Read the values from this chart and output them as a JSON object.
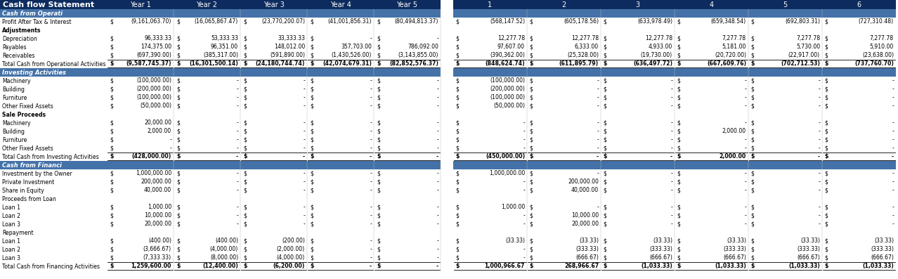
{
  "title": "Cash flow Statement",
  "header_bg": "#0d2b5e",
  "section_bg": "#4472a8",
  "header_text": "#ffffff",
  "body_text": "#000000",
  "col_headers_left": [
    "Year 1",
    "Year 2",
    "Year 3",
    "Year 4",
    "Year 5"
  ],
  "col_headers_right": [
    "1",
    "2",
    "3",
    "4",
    "5",
    "6"
  ],
  "rows": [
    {
      "label": "Cash from Operati",
      "type": "section"
    },
    {
      "label": "Profit After Tax & Interest",
      "type": "data",
      "left": [
        "(9,161,063.70)",
        "(16,065,867.47)",
        "(23,770,200.07)",
        "(41,001,856.31)",
        "(80,494,813.37)"
      ],
      "right": [
        "(568,147.52)",
        "(605,178.56)",
        "(633,978.49)",
        "(659,348.54)",
        "(692,803.31)",
        "(727,310.48)"
      ]
    },
    {
      "label": "Adjustments",
      "type": "bold_underline"
    },
    {
      "label": "Depreciation",
      "type": "data",
      "left": [
        "96,333.33",
        "53,333.33",
        "33,333.33",
        "-",
        "-"
      ],
      "right": [
        "12,277.78",
        "12,277.78",
        "12,277.78",
        "7,277.78",
        "7,277.78",
        "7,277.78"
      ]
    },
    {
      "label": "Payables",
      "type": "data",
      "left": [
        "174,375.00",
        "96,351.00",
        "148,012.00",
        "357,703.00",
        "786,092.00"
      ],
      "right": [
        "97,607.00",
        "6,333.00",
        "4,933.00",
        "5,181.00",
        "5,730.00",
        "5,910.00"
      ]
    },
    {
      "label": "Receivables",
      "type": "data",
      "left": [
        "(697,390.00)",
        "(385,317.00)",
        "(591,890.00)",
        "(1,430,526.00)",
        "(3,143,855.00)"
      ],
      "right": [
        "(390,362.00)",
        "(25,328.00)",
        "(19,730.00)",
        "(20,720.00)",
        "(22,917.00)",
        "(23,638.00)"
      ]
    },
    {
      "label": "Total Cash from Operational Activities",
      "type": "total",
      "left": [
        "(9,587,745.37)",
        "(16,301,500.14)",
        "(24,180,744.74)",
        "(42,074,679.31)",
        "(82,852,576.37)"
      ],
      "right": [
        "(848,624.74)",
        "(611,895.79)",
        "(636,497.72)",
        "(667,609.76)",
        "(702,712.53)",
        "(737,760.70)"
      ]
    },
    {
      "label": "Investing Activities",
      "type": "section"
    },
    {
      "label": "Machinery",
      "type": "data",
      "left": [
        "(100,000.00)",
        "-",
        "-",
        "-",
        "-"
      ],
      "right": [
        "(100,000.00)",
        "-",
        "-",
        "-",
        "-",
        "-"
      ]
    },
    {
      "label": "Building",
      "type": "data",
      "left": [
        "(200,000.00)",
        "-",
        "-",
        "-",
        "-"
      ],
      "right": [
        "(200,000.00)",
        "-",
        "-",
        "-",
        "-",
        "-"
      ]
    },
    {
      "label": "Furniture",
      "type": "data",
      "left": [
        "(100,000.00)",
        "-",
        "-",
        "-",
        "-"
      ],
      "right": [
        "(100,000.00)",
        "-",
        "-",
        "-",
        "-",
        "-"
      ]
    },
    {
      "label": "Other Fixed Assets",
      "type": "data",
      "left": [
        "(50,000.00)",
        "-",
        "-",
        "-",
        "-"
      ],
      "right": [
        "(50,000.00)",
        "-",
        "-",
        "-",
        "-",
        "-"
      ]
    },
    {
      "label": "Sale Proceeds",
      "type": "bold_underline"
    },
    {
      "label": "Machinery",
      "type": "data",
      "left": [
        "20,000.00",
        "-",
        "-",
        "-",
        "-"
      ],
      "right": [
        "-",
        "-",
        "-",
        "-",
        "-",
        "-"
      ]
    },
    {
      "label": "Building",
      "type": "data",
      "left": [
        "2,000.00",
        "-",
        "-",
        "-",
        "-"
      ],
      "right": [
        "-",
        "-",
        "-",
        "2,000.00",
        "-",
        "-"
      ]
    },
    {
      "label": "Furniture",
      "type": "data",
      "left": [
        "-",
        "-",
        "-",
        "-",
        "-"
      ],
      "right": [
        "-",
        "-",
        "-",
        "-",
        "-",
        "-"
      ]
    },
    {
      "label": "Other Fixed Assets",
      "type": "data",
      "left": [
        "-",
        "-",
        "-",
        "-",
        "-"
      ],
      "right": [
        "-",
        "-",
        "-",
        "-",
        "-",
        "-"
      ]
    },
    {
      "label": "Total Cash from Investing Activities",
      "type": "total",
      "left": [
        "(428,000.00)",
        "-",
        "-",
        "-",
        "-"
      ],
      "right": [
        "(450,000.00)",
        "-",
        "-",
        "2,000.00",
        "-",
        "-"
      ]
    },
    {
      "label": "Cash from Financi",
      "type": "section"
    },
    {
      "label": "Investment by the Owner",
      "type": "data",
      "left": [
        "1,000,000.00",
        "-",
        "-",
        "-",
        "-"
      ],
      "right": [
        "1,000,000.00",
        "-",
        "-",
        "-",
        "-",
        "-"
      ]
    },
    {
      "label": "Private Investment",
      "type": "data",
      "left": [
        "200,000.00",
        "-",
        "-",
        "-",
        "-"
      ],
      "right": [
        "-",
        "200,000.00",
        "-",
        "-",
        "-",
        "-"
      ]
    },
    {
      "label": "Share in Equity",
      "type": "data",
      "left": [
        "40,000.00",
        "-",
        "-",
        "-",
        "-"
      ],
      "right": [
        "-",
        "40,000.00",
        "-",
        "-",
        "-",
        "-"
      ]
    },
    {
      "label": "Proceeds from Loan",
      "type": "underline_only"
    },
    {
      "label": "Loan 1",
      "type": "data",
      "left": [
        "1,000.00",
        "-",
        "-",
        "-",
        "-"
      ],
      "right": [
        "1,000.00",
        "-",
        "-",
        "-",
        "-",
        "-"
      ]
    },
    {
      "label": "Loan 2",
      "type": "data",
      "left": [
        "10,000.00",
        "-",
        "-",
        "-",
        "-"
      ],
      "right": [
        "-",
        "10,000.00",
        "-",
        "-",
        "-",
        "-"
      ]
    },
    {
      "label": "Loan 3",
      "type": "data",
      "left": [
        "20,000.00",
        "-",
        "-",
        "-",
        "-"
      ],
      "right": [
        "-",
        "20,000.00",
        "-",
        "-",
        "-",
        "-"
      ]
    },
    {
      "label": "Repayment",
      "type": "underline_only"
    },
    {
      "label": "Loan 1",
      "type": "data",
      "left": [
        "(400.00)",
        "(400.00)",
        "(200.00)",
        "-",
        "-"
      ],
      "right": [
        "(33.33)",
        "(33.33)",
        "(33.33)",
        "(33.33)",
        "(33.33)",
        "(33.33)"
      ]
    },
    {
      "label": "Loan 2",
      "type": "data",
      "left": [
        "(3,666.67)",
        "(4,000.00)",
        "(2,000.00)",
        "-",
        "-"
      ],
      "right": [
        "-",
        "(333.33)",
        "(333.33)",
        "(333.33)",
        "(333.33)",
        "(333.33)"
      ]
    },
    {
      "label": "Loan 3",
      "type": "data",
      "left": [
        "(7,333.33)",
        "(8,000.00)",
        "(4,000.00)",
        "-",
        "-"
      ],
      "right": [
        "-",
        "(666.67)",
        "(666.67)",
        "(666.67)",
        "(666.67)",
        "(666.67)"
      ]
    },
    {
      "label": "Total Cash from Financing Activities",
      "type": "total",
      "left": [
        "1,259,600.00",
        "(12,400.00)",
        "(6,200.00)",
        "-",
        "-"
      ],
      "right": [
        "1,000,966.67",
        "268,966.67",
        "(1,033.33)",
        "(1,033.33)",
        "(1,033.33)",
        "(1,033.33)"
      ]
    }
  ]
}
